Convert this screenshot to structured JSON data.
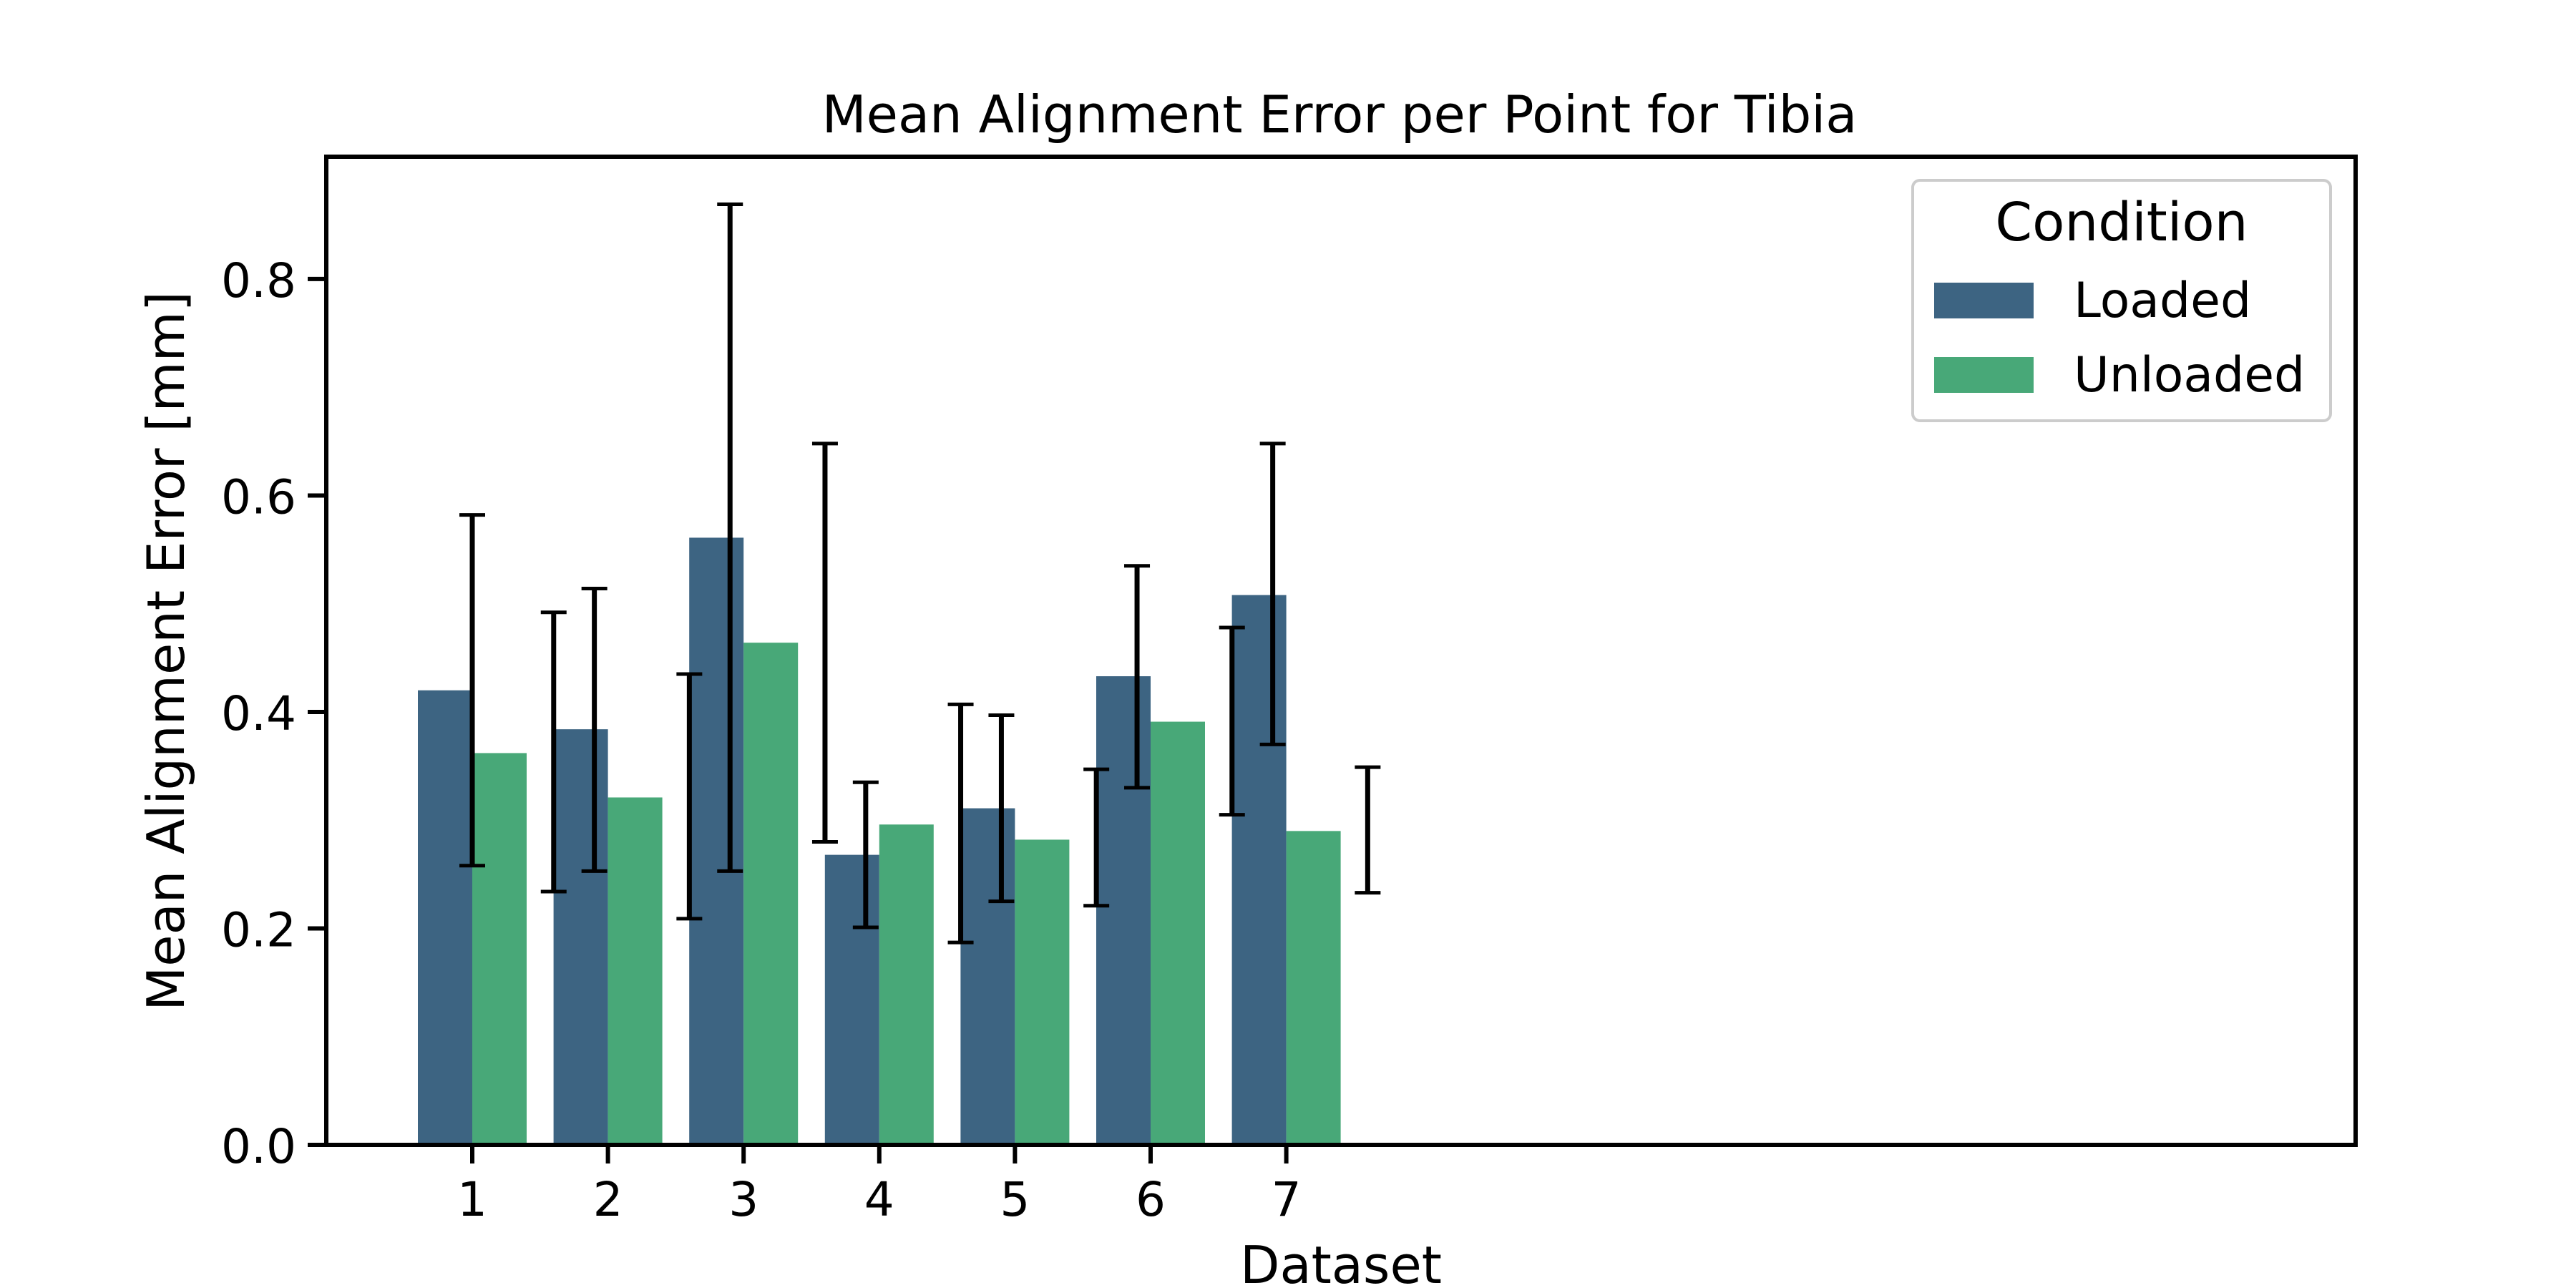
{
  "chart_data": {
    "type": "bar",
    "title": "Mean Alignment Error per Point for Tibia",
    "xlabel": "Dataset",
    "ylabel": "Mean Alignment Error [mm]",
    "categories": [
      "1",
      "2",
      "3",
      "4",
      "5",
      "6",
      "7"
    ],
    "ylim": [
      0,
      0.913
    ],
    "yticks": [
      0.0,
      0.2,
      0.4,
      0.6,
      0.8
    ],
    "ytick_labels": [
      "0.0",
      "0.2",
      "0.4",
      "0.6",
      "0.8"
    ],
    "grid": false,
    "legend": {
      "title": "Condition",
      "position": "top-right"
    },
    "series": [
      {
        "name": "Loaded",
        "color": "#3d6482",
        "values": [
          0.42,
          0.384,
          0.561,
          0.268,
          0.311,
          0.433,
          0.508
        ]
      },
      {
        "name": "Unloaded",
        "color": "#48a878",
        "values": [
          0.362,
          0.321,
          0.464,
          0.296,
          0.282,
          0.391,
          0.29
        ]
      }
    ],
    "error_bars": [
      {
        "x": 1.0,
        "low": 0.258,
        "high": 0.582
      },
      {
        "x": 2.2,
        "low": 0.234,
        "high": 0.492
      },
      {
        "x": 2.8,
        "low": 0.253,
        "high": 0.514
      },
      {
        "x": 4.2,
        "low": 0.209,
        "high": 0.435
      },
      {
        "x": 4.8,
        "low": 0.253,
        "high": 0.869
      },
      {
        "x": 6.2,
        "low": 0.28,
        "high": 0.648
      },
      {
        "x": 6.8,
        "low": 0.201,
        "high": 0.335
      },
      {
        "x": 8.2,
        "low": 0.187,
        "high": 0.407
      },
      {
        "x": 8.8,
        "low": 0.225,
        "high": 0.397
      },
      {
        "x": 10.2,
        "low": 0.221,
        "high": 0.347
      },
      {
        "x": 10.8,
        "low": 0.33,
        "high": 0.535
      },
      {
        "x": 12.2,
        "low": 0.305,
        "high": 0.478
      },
      {
        "x": 12.8,
        "low": 0.37,
        "high": 0.648
      },
      {
        "x": 14.2,
        "low": 0.233,
        "high": 0.349
      }
    ]
  }
}
